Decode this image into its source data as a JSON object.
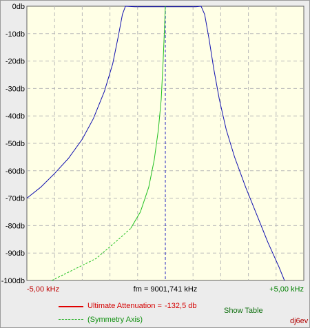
{
  "chart_data": {
    "type": "line",
    "title": "",
    "xlabel": "fm = 9001,741 kHz",
    "ylabel": "",
    "x_tick_labels": {
      "left": "-5,00 kHz",
      "center": "fm = 9001,741 kHz",
      "right": "+5,00 kHz"
    },
    "xlim": [
      -5,
      5
    ],
    "ylim": [
      -100,
      0
    ],
    "y_ticks": [
      {
        "value": 0,
        "label": "0db"
      },
      {
        "value": -10,
        "label": "-10db"
      },
      {
        "value": -20,
        "label": "-20db"
      },
      {
        "value": -30,
        "label": "-30db"
      },
      {
        "value": -40,
        "label": "-40db"
      },
      {
        "value": -50,
        "label": "-50db"
      },
      {
        "value": -60,
        "label": "-60db"
      },
      {
        "value": -70,
        "label": "-70db"
      },
      {
        "value": -80,
        "label": "-80db"
      },
      {
        "value": -90,
        "label": "-90db"
      },
      {
        "value": -100,
        "label": "-100db"
      }
    ],
    "grid": true,
    "series": [
      {
        "color": "#1010b0",
        "points": [
          [
            -5.0,
            -70
          ],
          [
            -4.5,
            -66
          ],
          [
            -4.0,
            -61
          ],
          [
            -3.5,
            -55.5
          ],
          [
            -3.0,
            -48.5
          ],
          [
            -2.6,
            -41
          ],
          [
            -2.2,
            -31
          ],
          [
            -1.9,
            -21
          ],
          [
            -1.7,
            -11
          ],
          [
            -1.55,
            -3
          ],
          [
            -1.44,
            0
          ],
          [
            -1.1,
            -0.2
          ],
          [
            -0.5,
            -0.2
          ],
          [
            0.0,
            -0.2
          ],
          [
            0.5,
            -0.2
          ],
          [
            1.1,
            -0.2
          ],
          [
            1.29,
            0
          ],
          [
            1.42,
            -3
          ],
          [
            1.58,
            -12
          ],
          [
            1.75,
            -23
          ],
          [
            1.95,
            -34
          ],
          [
            2.2,
            -45
          ],
          [
            2.5,
            -55
          ],
          [
            2.9,
            -66
          ],
          [
            3.3,
            -76
          ],
          [
            3.7,
            -86
          ],
          [
            4.1,
            -95
          ],
          [
            4.3,
            -100
          ]
        ]
      },
      {
        "color": "#20c020",
        "dashed_points": [
          [
            -4.1,
            -100
          ],
          [
            -3.3,
            -96
          ],
          [
            -2.5,
            -92
          ],
          [
            -1.8,
            -86
          ],
          [
            -1.25,
            -81
          ]
        ],
        "points": [
          [
            -1.25,
            -81
          ],
          [
            -0.9,
            -75
          ],
          [
            -0.6,
            -66
          ],
          [
            -0.4,
            -56
          ],
          [
            -0.25,
            -45
          ],
          [
            -0.15,
            -34
          ],
          [
            -0.08,
            -20
          ],
          [
            -0.03,
            -8
          ],
          [
            0.0,
            0
          ]
        ]
      }
    ],
    "symmetry_axis_x": 0,
    "legend": [
      {
        "label": "Ultimate Attenuation =",
        "value": "-132,5 db",
        "color": "#e00000"
      },
      {
        "label": "(Symmetry Axis)",
        "color": "#20b020"
      }
    ]
  },
  "ui": {
    "show_table": "Show Table",
    "author": "dj6ev"
  }
}
